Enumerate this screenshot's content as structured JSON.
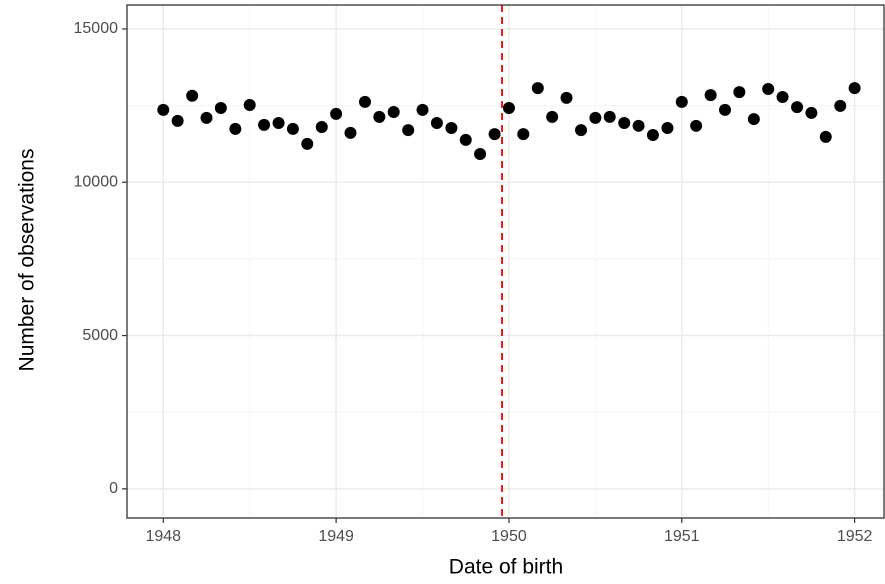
{
  "chart_data": {
    "type": "scatter",
    "x_label": "Date of birth",
    "y_label": "Number of observations",
    "x": [
      1948,
      1948.083,
      1948.167,
      1948.25,
      1948.333,
      1948.417,
      1948.5,
      1948.583,
      1948.667,
      1948.75,
      1948.833,
      1948.917,
      1949,
      1949.083,
      1949.167,
      1949.25,
      1949.333,
      1949.417,
      1949.5,
      1949.583,
      1949.667,
      1949.75,
      1949.833,
      1949.917,
      1950,
      1950.083,
      1950.167,
      1950.25,
      1950.333,
      1950.417,
      1950.5,
      1950.583,
      1950.667,
      1950.75,
      1950.833,
      1950.917,
      1951,
      1951.083,
      1951.167,
      1951.25,
      1951.333,
      1951.417,
      1951.5,
      1951.583,
      1951.667,
      1951.75,
      1951.833,
      1951.917,
      1952
    ],
    "values": [
      12360,
      12000,
      12820,
      12100,
      12420,
      11740,
      12520,
      11870,
      11930,
      11740,
      11250,
      11800,
      12230,
      11610,
      12620,
      12130,
      12290,
      11700,
      12360,
      11930,
      11770,
      11380,
      10920,
      11570,
      12420,
      11570,
      13070,
      12130,
      12750,
      11700,
      12100,
      12130,
      11930,
      11840,
      11540,
      11770,
      12620,
      11840,
      12840,
      12360,
      12940,
      12060,
      13040,
      12780,
      12450,
      12260,
      11480,
      12490,
      13070
    ],
    "color": "#000000",
    "xlim": [
      1947.79,
      1952.17
    ],
    "ylim": [
      -950,
      15780
    ],
    "xticks": [
      1948,
      1949,
      1950,
      1951,
      1952
    ],
    "yticks": [
      0,
      5000,
      10000,
      15000
    ],
    "xminorticks": [
      1948.5,
      1949.5,
      1950.5,
      1951.5
    ],
    "yminorticks": [
      2500,
      7500,
      12500
    ],
    "grid": true,
    "vline": {
      "x": 1949.96,
      "color": "#e31a1c"
    }
  }
}
